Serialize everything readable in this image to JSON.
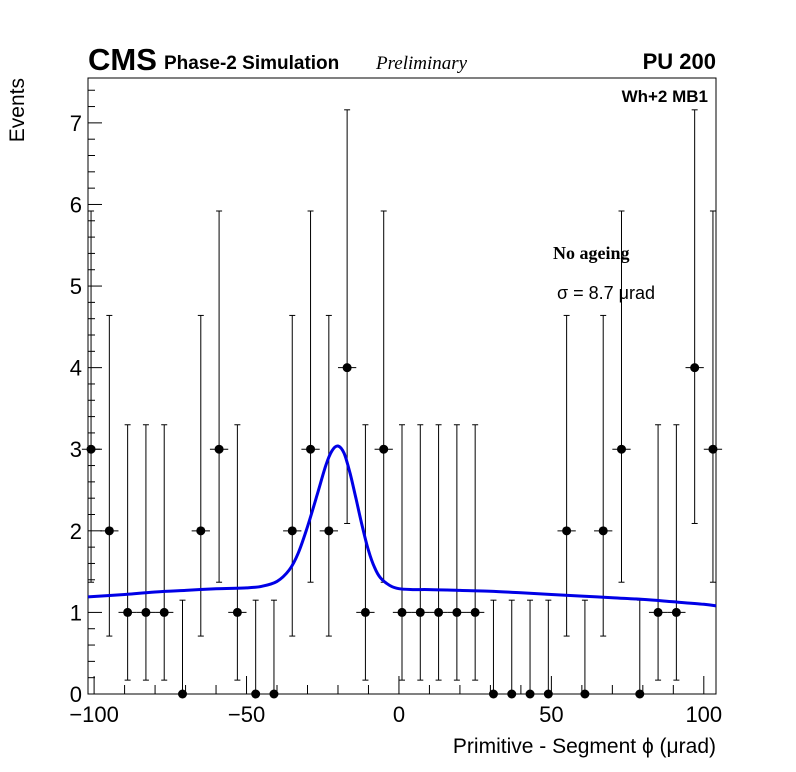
{
  "header": {
    "experiment": "CMS",
    "label": "Phase-2 Simulation",
    "status": "Preliminary",
    "pileup": "PU 200",
    "chamber": "Wh+2 MB1"
  },
  "legend": {
    "condition": "No ageing",
    "sigma_text": "σ = 8.7  μrad"
  },
  "chart_data": {
    "type": "scatter",
    "xlabel": "Primitive - Segment ϕ (μrad)",
    "ylabel": "Events",
    "xlim": [
      -102,
      104
    ],
    "ylim": [
      0,
      7.55
    ],
    "x_ticks": [
      -100,
      -50,
      0,
      50,
      100
    ],
    "x_tick_labels": [
      "−100",
      "−50",
      "0",
      "50",
      "100"
    ],
    "y_ticks": [
      0,
      1,
      2,
      3,
      4,
      5,
      6,
      7
    ],
    "y_tick_labels": [
      "0",
      "1",
      "2",
      "3",
      "4",
      "5",
      "6",
      "7"
    ],
    "bin_width": 6,
    "grid": false,
    "points": [
      {
        "x": -101,
        "y": 3,
        "lo": 1.37,
        "hi": 5.92
      },
      {
        "x": -95,
        "y": 2,
        "lo": 0.71,
        "hi": 4.64
      },
      {
        "x": -89,
        "y": 1,
        "lo": 0.17,
        "hi": 3.3
      },
      {
        "x": -83,
        "y": 1,
        "lo": 0.17,
        "hi": 3.3
      },
      {
        "x": -77,
        "y": 1,
        "lo": 0.17,
        "hi": 3.3
      },
      {
        "x": -71,
        "y": 0,
        "lo": 0,
        "hi": 1.15
      },
      {
        "x": -65,
        "y": 2,
        "lo": 0.71,
        "hi": 4.64
      },
      {
        "x": -59,
        "y": 3,
        "lo": 1.37,
        "hi": 5.92
      },
      {
        "x": -53,
        "y": 1,
        "lo": 0.17,
        "hi": 3.3
      },
      {
        "x": -47,
        "y": 0,
        "lo": 0,
        "hi": 1.15
      },
      {
        "x": -41,
        "y": 0,
        "lo": 0,
        "hi": 1.15
      },
      {
        "x": -35,
        "y": 2,
        "lo": 0.71,
        "hi": 4.64
      },
      {
        "x": -29,
        "y": 3,
        "lo": 1.37,
        "hi": 5.92
      },
      {
        "x": -23,
        "y": 2,
        "lo": 0.71,
        "hi": 4.64
      },
      {
        "x": -17,
        "y": 4,
        "lo": 2.09,
        "hi": 7.16
      },
      {
        "x": -11,
        "y": 1,
        "lo": 0.17,
        "hi": 3.3
      },
      {
        "x": -5,
        "y": 3,
        "lo": 1.37,
        "hi": 5.92
      },
      {
        "x": 1,
        "y": 1,
        "lo": 0.17,
        "hi": 3.3
      },
      {
        "x": 7,
        "y": 1,
        "lo": 0.17,
        "hi": 3.3
      },
      {
        "x": 13,
        "y": 1,
        "lo": 0.17,
        "hi": 3.3
      },
      {
        "x": 19,
        "y": 1,
        "lo": 0.17,
        "hi": 3.3
      },
      {
        "x": 25,
        "y": 1,
        "lo": 0.17,
        "hi": 3.3
      },
      {
        "x": 31,
        "y": 0,
        "lo": 0,
        "hi": 1.15
      },
      {
        "x": 37,
        "y": 0,
        "lo": 0,
        "hi": 1.15
      },
      {
        "x": 43,
        "y": 0,
        "lo": 0,
        "hi": 1.15
      },
      {
        "x": 49,
        "y": 0,
        "lo": 0,
        "hi": 1.15
      },
      {
        "x": 55,
        "y": 2,
        "lo": 0.71,
        "hi": 4.64
      },
      {
        "x": 61,
        "y": 0,
        "lo": 0,
        "hi": 1.15
      },
      {
        "x": 67,
        "y": 2,
        "lo": 0.71,
        "hi": 4.64
      },
      {
        "x": 73,
        "y": 3,
        "lo": 1.37,
        "hi": 5.92
      },
      {
        "x": 79,
        "y": 0,
        "lo": 0,
        "hi": 1.15
      },
      {
        "x": 85,
        "y": 1,
        "lo": 0.17,
        "hi": 3.3
      },
      {
        "x": 91,
        "y": 1,
        "lo": 0.17,
        "hi": 3.3
      },
      {
        "x": 97,
        "y": 4,
        "lo": 2.09,
        "hi": 7.16
      },
      {
        "x": 103,
        "y": 3,
        "lo": 1.37,
        "hi": 5.92
      }
    ],
    "fit": {
      "color": "#0000e6",
      "x": [
        -102,
        -90,
        -80,
        -70,
        -60,
        -50,
        -45,
        -40,
        -36,
        -33,
        -30,
        -27,
        -24,
        -22,
        -20,
        -18,
        -16,
        -14,
        -12,
        -10,
        -8,
        -6,
        -3,
        0,
        5,
        10,
        20,
        30,
        40,
        50,
        60,
        70,
        80,
        90,
        100,
        104
      ],
      "y": [
        1.19,
        1.22,
        1.25,
        1.27,
        1.29,
        1.3,
        1.32,
        1.38,
        1.52,
        1.73,
        2.05,
        2.42,
        2.8,
        2.98,
        3.04,
        2.95,
        2.7,
        2.38,
        2.05,
        1.76,
        1.55,
        1.42,
        1.33,
        1.29,
        1.28,
        1.28,
        1.27,
        1.26,
        1.24,
        1.22,
        1.2,
        1.18,
        1.16,
        1.13,
        1.1,
        1.08
      ]
    }
  }
}
